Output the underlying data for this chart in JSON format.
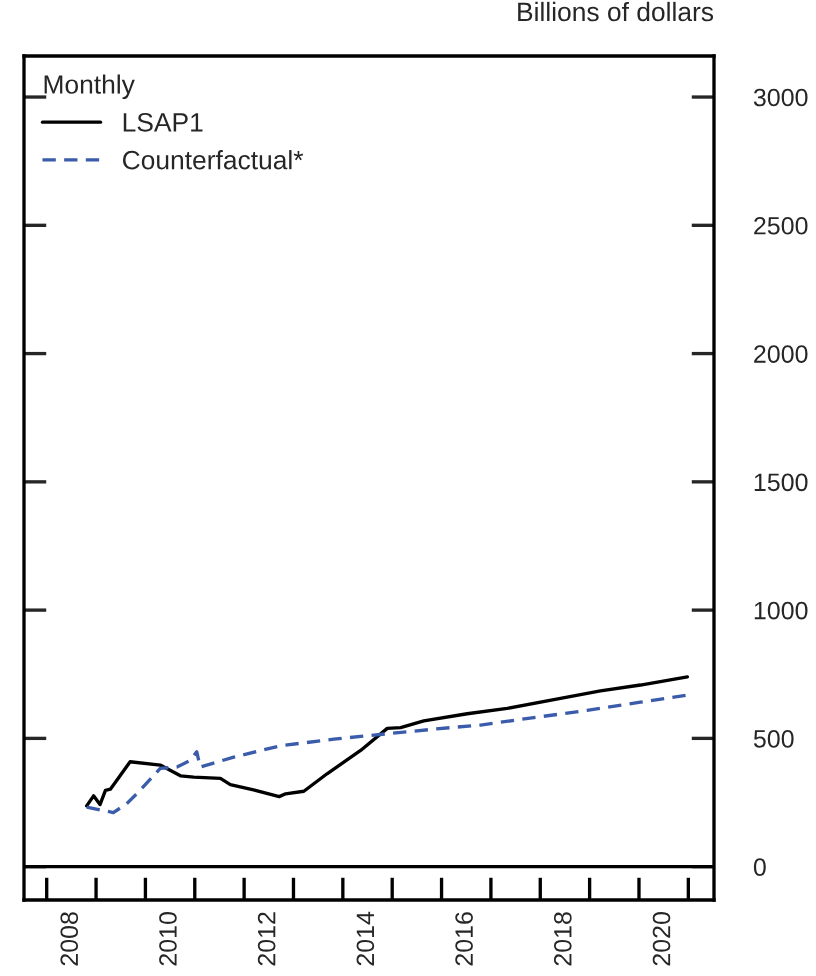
{
  "chart_data": {
    "type": "line",
    "ylabel": "Billions of dollars",
    "legend_title": "Monthly",
    "legend": "top left",
    "grid": false,
    "xlim": [
      2007.54,
      2021.52
    ],
    "xticks": [
      {
        "value": 2008,
        "label": null
      },
      {
        "value": 2009,
        "label": null
      },
      {
        "value": 2010,
        "label": null
      },
      {
        "value": 2011,
        "label": null
      },
      {
        "value": 2012,
        "label": null
      },
      {
        "value": 2013,
        "label": null
      },
      {
        "value": 2014,
        "label": null
      },
      {
        "value": 2015,
        "label": null
      },
      {
        "value": 2016,
        "label": null
      },
      {
        "value": 2017,
        "label": null
      },
      {
        "value": 2018,
        "label": null
      },
      {
        "value": 2019,
        "label": null
      },
      {
        "value": 2020,
        "label": null
      },
      {
        "value": 2021,
        "label": null
      },
      {
        "value": 2008.5,
        "label": "2008"
      },
      {
        "value": 2010.5,
        "label": "2010"
      },
      {
        "value": 2012.5,
        "label": "2012"
      },
      {
        "value": 2014.5,
        "label": "2014"
      },
      {
        "value": 2016.5,
        "label": "2016"
      },
      {
        "value": 2018.5,
        "label": "2018"
      },
      {
        "value": 2020.5,
        "label": "2020"
      }
    ],
    "ylim": [
      -130,
      3160
    ],
    "yticks": [
      0,
      500,
      1000,
      1500,
      2000,
      2500,
      3000
    ],
    "ref_lines": [
      {
        "axis": "y",
        "value": 0,
        "color": "#000000",
        "line_style": "solid"
      }
    ],
    "series": [
      {
        "name": "LSAP1",
        "color": "#000000",
        "line_style": "solid",
        "x": [
          2008.81,
          2008.95,
          2009.08,
          2009.19,
          2009.29,
          2009.69,
          2010.3,
          2010.71,
          2010.98,
          2011.52,
          2011.72,
          2012.19,
          2012.71,
          2012.84,
          2013.21,
          2013.68,
          2014.36,
          2014.9,
          2015.17,
          2015.64,
          2016.52,
          2017.33,
          2018.41,
          2019.22,
          2020.03,
          2020.98
        ],
        "values": [
          237,
          276,
          242,
          297,
          302,
          409,
          396,
          354,
          349,
          344,
          320,
          299,
          273,
          284,
          294,
          362,
          453,
          539,
          542,
          568,
          596,
          617,
          656,
          685,
          708,
          740
        ]
      },
      {
        "name": "Counterfactual*",
        "color": "#3b5bab",
        "line_style": "dashed",
        "x": [
          2008.81,
          2009.35,
          2009.62,
          2009.89,
          2010.3,
          2010.64,
          2010.91,
          2011.04,
          2011.11,
          2011.79,
          2012.73,
          2013.82,
          2014.9,
          2015.84,
          2016.79,
          2017.87,
          2018.95,
          2020.03,
          2020.98
        ],
        "values": [
          232,
          211,
          245,
          297,
          383,
          388,
          414,
          448,
          388,
          427,
          471,
          497,
          518,
          536,
          552,
          581,
          609,
          641,
          669
        ]
      }
    ]
  }
}
